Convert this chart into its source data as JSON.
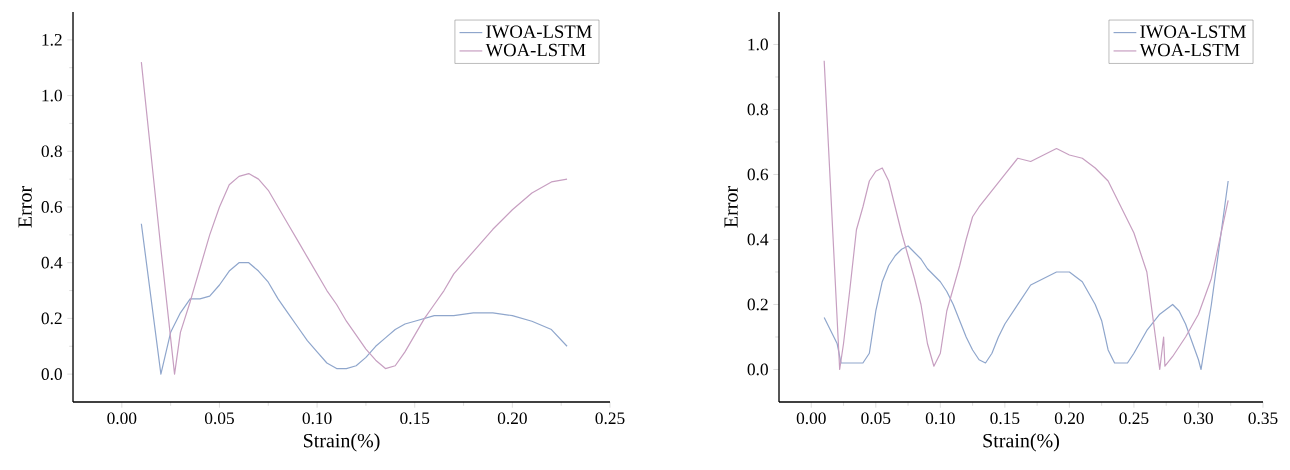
{
  "chart_data": [
    {
      "type": "line",
      "xlabel": "Strain(%)",
      "ylabel": "Error",
      "legend": "top right",
      "xlim": [
        -0.025,
        0.25
      ],
      "ylim": [
        -0.1,
        1.3
      ],
      "xticks": [
        {
          "value": 0,
          "label": "0.00"
        },
        {
          "value": 0.05,
          "label": "0.05"
        },
        {
          "value": 0.1,
          "label": "0.10"
        },
        {
          "value": 0.15,
          "label": "0.15"
        },
        {
          "value": 0.2,
          "label": "0.20"
        },
        {
          "value": 0.25,
          "label": "0.25"
        }
      ],
      "yticks": [
        {
          "value": 0,
          "label": "0.0"
        },
        {
          "value": 0.2,
          "label": "0.2"
        },
        {
          "value": 0.4,
          "label": "0.4"
        },
        {
          "value": 0.6,
          "label": "0.6"
        },
        {
          "value": 0.8,
          "label": "0.8"
        },
        {
          "value": 1.0,
          "label": "1.0"
        },
        {
          "value": 1.2,
          "label": "1.2"
        }
      ],
      "series": [
        {
          "name": "IWOA-LSTM",
          "color": "#8fa6cc",
          "x": [
            0.01,
            0.02,
            0.025,
            0.03,
            0.035,
            0.04,
            0.045,
            0.05,
            0.055,
            0.06,
            0.065,
            0.07,
            0.075,
            0.08,
            0.085,
            0.09,
            0.095,
            0.1,
            0.105,
            0.11,
            0.115,
            0.12,
            0.125,
            0.13,
            0.135,
            0.14,
            0.145,
            0.15,
            0.16,
            0.17,
            0.18,
            0.19,
            0.2,
            0.21,
            0.22,
            0.228
          ],
          "values": [
            0.54,
            0.0,
            0.15,
            0.22,
            0.27,
            0.27,
            0.28,
            0.32,
            0.37,
            0.4,
            0.4,
            0.37,
            0.33,
            0.27,
            0.22,
            0.17,
            0.12,
            0.08,
            0.04,
            0.02,
            0.02,
            0.03,
            0.06,
            0.1,
            0.13,
            0.16,
            0.18,
            0.19,
            0.21,
            0.21,
            0.22,
            0.22,
            0.21,
            0.19,
            0.16,
            0.1
          ]
        },
        {
          "name": "WOA-LSTM",
          "color": "#c79fc1",
          "x": [
            0.01,
            0.02,
            0.027,
            0.03,
            0.035,
            0.04,
            0.045,
            0.05,
            0.055,
            0.06,
            0.065,
            0.07,
            0.075,
            0.08,
            0.085,
            0.09,
            0.095,
            0.1,
            0.105,
            0.11,
            0.115,
            0.12,
            0.125,
            0.13,
            0.135,
            0.14,
            0.145,
            0.15,
            0.155,
            0.16,
            0.165,
            0.17,
            0.18,
            0.19,
            0.2,
            0.21,
            0.22,
            0.228
          ],
          "values": [
            1.12,
            0.45,
            0.0,
            0.15,
            0.26,
            0.38,
            0.5,
            0.6,
            0.68,
            0.71,
            0.72,
            0.7,
            0.66,
            0.6,
            0.54,
            0.48,
            0.42,
            0.36,
            0.3,
            0.25,
            0.19,
            0.14,
            0.09,
            0.05,
            0.02,
            0.03,
            0.08,
            0.14,
            0.2,
            0.25,
            0.3,
            0.36,
            0.44,
            0.52,
            0.59,
            0.65,
            0.69,
            0.7
          ]
        }
      ]
    },
    {
      "type": "line",
      "xlabel": "Strain(%)",
      "ylabel": "Error",
      "legend": "top right",
      "xlim": [
        -0.025,
        0.35
      ],
      "ylim": [
        -0.1,
        1.1
      ],
      "xticks": [
        {
          "value": 0,
          "label": "0.00"
        },
        {
          "value": 0.05,
          "label": "0.05"
        },
        {
          "value": 0.1,
          "label": "0.10"
        },
        {
          "value": 0.15,
          "label": "0.15"
        },
        {
          "value": 0.2,
          "label": "0.20"
        },
        {
          "value": 0.25,
          "label": "0.25"
        },
        {
          "value": 0.3,
          "label": "0.30"
        },
        {
          "value": 0.35,
          "label": "0.35"
        }
      ],
      "yticks": [
        {
          "value": 0,
          "label": "0.0"
        },
        {
          "value": 0.2,
          "label": "0.2"
        },
        {
          "value": 0.4,
          "label": "0.4"
        },
        {
          "value": 0.6,
          "label": "0.6"
        },
        {
          "value": 0.8,
          "label": "0.8"
        },
        {
          "value": 1.0,
          "label": "1.0"
        }
      ],
      "series": [
        {
          "name": "IWOA-LSTM",
          "color": "#8fa6cc",
          "x": [
            0.01,
            0.02,
            0.023,
            0.04,
            0.045,
            0.05,
            0.055,
            0.06,
            0.065,
            0.07,
            0.075,
            0.08,
            0.085,
            0.09,
            0.095,
            0.1,
            0.105,
            0.11,
            0.115,
            0.12,
            0.125,
            0.13,
            0.135,
            0.14,
            0.145,
            0.15,
            0.16,
            0.17,
            0.18,
            0.19,
            0.2,
            0.21,
            0.22,
            0.225,
            0.23,
            0.235,
            0.245,
            0.25,
            0.26,
            0.27,
            0.28,
            0.285,
            0.29,
            0.3,
            0.302,
            0.31,
            0.323
          ],
          "values": [
            0.16,
            0.08,
            0.02,
            0.02,
            0.05,
            0.18,
            0.27,
            0.32,
            0.35,
            0.37,
            0.38,
            0.36,
            0.34,
            0.31,
            0.29,
            0.27,
            0.24,
            0.2,
            0.15,
            0.1,
            0.06,
            0.03,
            0.02,
            0.05,
            0.1,
            0.14,
            0.2,
            0.26,
            0.28,
            0.3,
            0.3,
            0.27,
            0.2,
            0.15,
            0.06,
            0.02,
            0.02,
            0.05,
            0.12,
            0.17,
            0.2,
            0.18,
            0.14,
            0.03,
            0.0,
            0.2,
            0.58
          ]
        },
        {
          "name": "WOA-LSTM",
          "color": "#c79fc1",
          "x": [
            0.01,
            0.022,
            0.025,
            0.03,
            0.035,
            0.04,
            0.045,
            0.05,
            0.055,
            0.06,
            0.065,
            0.07,
            0.075,
            0.08,
            0.085,
            0.09,
            0.095,
            0.1,
            0.105,
            0.11,
            0.115,
            0.12,
            0.125,
            0.13,
            0.14,
            0.15,
            0.16,
            0.17,
            0.18,
            0.19,
            0.2,
            0.21,
            0.22,
            0.23,
            0.24,
            0.25,
            0.26,
            0.265,
            0.27,
            0.273,
            0.274,
            0.28,
            0.29,
            0.3,
            0.31,
            0.323
          ],
          "values": [
            0.95,
            0.0,
            0.08,
            0.25,
            0.43,
            0.5,
            0.58,
            0.61,
            0.62,
            0.58,
            0.5,
            0.42,
            0.35,
            0.28,
            0.2,
            0.08,
            0.01,
            0.05,
            0.18,
            0.25,
            0.32,
            0.4,
            0.47,
            0.5,
            0.55,
            0.6,
            0.65,
            0.64,
            0.66,
            0.68,
            0.66,
            0.65,
            0.62,
            0.58,
            0.5,
            0.42,
            0.3,
            0.15,
            0.0,
            0.1,
            0.01,
            0.04,
            0.1,
            0.17,
            0.28,
            0.52
          ]
        }
      ]
    }
  ]
}
